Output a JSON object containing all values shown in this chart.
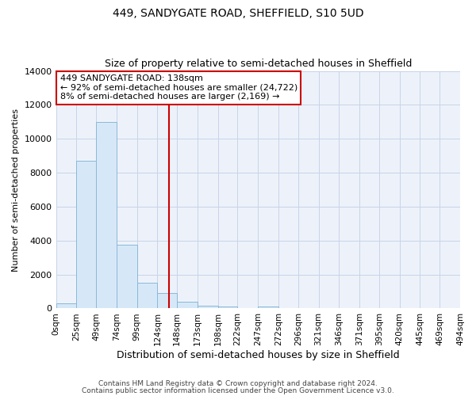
{
  "title1": "449, SANDYGATE ROAD, SHEFFIELD, S10 5UD",
  "title2": "Size of property relative to semi-detached houses in Sheffield",
  "xlabel": "Distribution of semi-detached houses by size in Sheffield",
  "ylabel": "Number of semi-detached properties",
  "annotation_line1": "449 SANDYGATE ROAD: 138sqm",
  "annotation_line2": "← 92% of semi-detached houses are smaller (24,722)",
  "annotation_line3": "8% of semi-detached houses are larger (2,169) →",
  "property_size": 138,
  "bar_edges": [
    0,
    25,
    49,
    74,
    99,
    124,
    148,
    173,
    198,
    222,
    247,
    272,
    296,
    321,
    346,
    371,
    395,
    420,
    445,
    469,
    494
  ],
  "bar_heights": [
    300,
    8700,
    11000,
    3750,
    1500,
    900,
    400,
    150,
    130,
    0,
    130,
    0,
    0,
    0,
    0,
    0,
    0,
    0,
    0,
    0
  ],
  "bar_fill_color": "#d6e8f7",
  "bar_edge_color": "#8ab8d8",
  "red_line_color": "#cc0000",
  "annotation_box_edge_color": "#cc0000",
  "grid_color": "#c8d4e8",
  "background_color": "#edf2fa",
  "tick_labels": [
    "0sqm",
    "25sqm",
    "49sqm",
    "74sqm",
    "99sqm",
    "124sqm",
    "148sqm",
    "173sqm",
    "198sqm",
    "222sqm",
    "247sqm",
    "272sqm",
    "296sqm",
    "321sqm",
    "346sqm",
    "371sqm",
    "395sqm",
    "420sqm",
    "445sqm",
    "469sqm",
    "494sqm"
  ],
  "ylim": [
    0,
    14000
  ],
  "yticks": [
    0,
    2000,
    4000,
    6000,
    8000,
    10000,
    12000,
    14000
  ],
  "footer1": "Contains HM Land Registry data © Crown copyright and database right 2024.",
  "footer2": "Contains public sector information licensed under the Open Government Licence v3.0."
}
